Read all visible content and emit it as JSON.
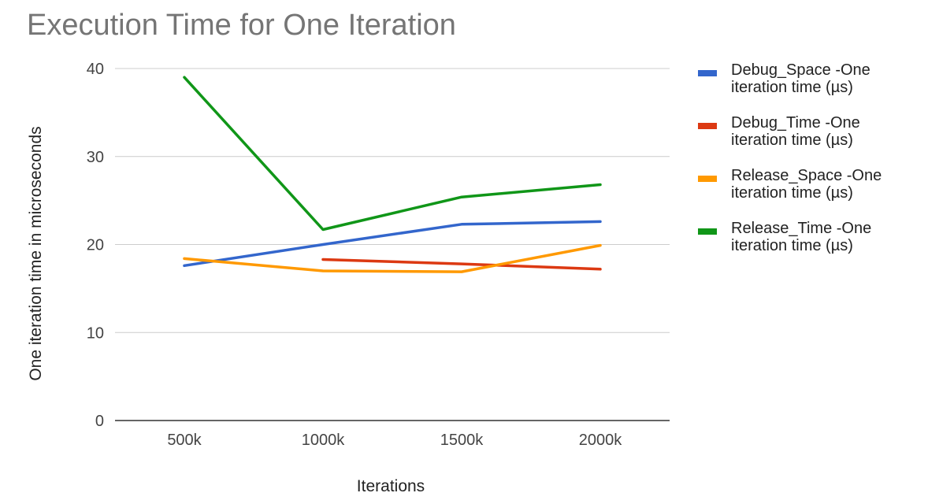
{
  "chart_data": {
    "type": "line",
    "title": "Execution Time for One Iteration",
    "xlabel": "Iterations",
    "ylabel": "One iteration time in microseconds",
    "categories": [
      "500k",
      "1000k",
      "1500k",
      "2000k"
    ],
    "yticks": [
      "0",
      "10",
      "20",
      "30",
      "40"
    ],
    "ylim": [
      0,
      40
    ],
    "grid": true,
    "legend_position": "right",
    "series": [
      {
        "name": "Debug_Space -One iteration time (µs)",
        "name_lines": [
          "Debug_Space -One",
          "iteration time (µs)"
        ],
        "color": "#3366cc",
        "values": [
          17.6,
          20.0,
          22.3,
          22.6
        ]
      },
      {
        "name": "Debug_Time -One iteration time (µs)",
        "name_lines": [
          "Debug_Time -One",
          "iteration time (µs)"
        ],
        "color": "#dc3912",
        "values": [
          null,
          18.3,
          17.8,
          17.2
        ]
      },
      {
        "name": "Release_Space -One iteration time (µs)",
        "name_lines": [
          "Release_Space -One",
          "iteration time (µs)"
        ],
        "color": "#ff9900",
        "values": [
          18.4,
          17.0,
          16.9,
          19.9
        ]
      },
      {
        "name": "Release_Time -One iteration time (µs)",
        "name_lines": [
          "Release_Time -One",
          "iteration time (µs)"
        ],
        "color": "#109618",
        "values": [
          39.0,
          21.7,
          25.4,
          26.8
        ]
      }
    ]
  }
}
